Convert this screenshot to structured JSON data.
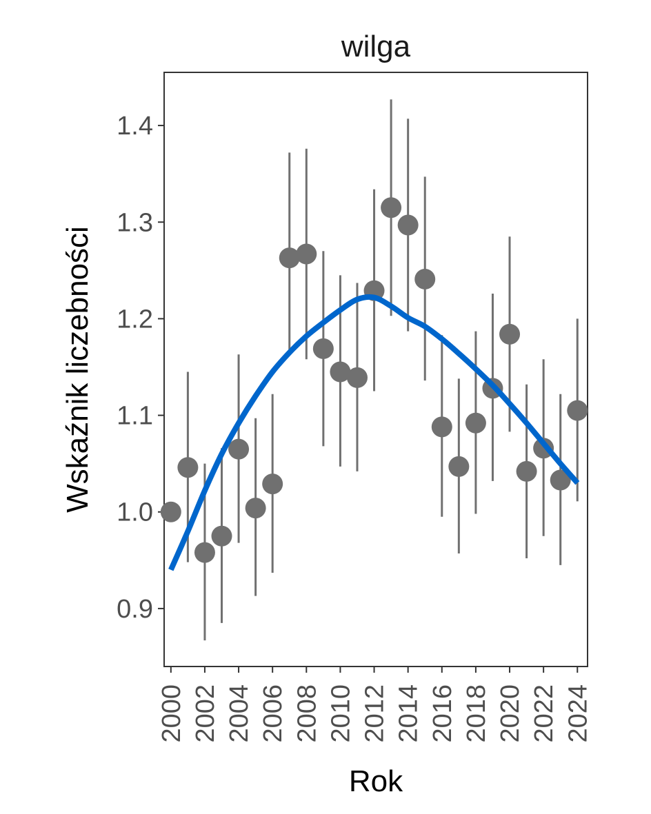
{
  "chart_data": {
    "type": "scatter",
    "title": "wilga",
    "xlabel": "Rok",
    "ylabel": "Wskaźnik liczebności",
    "xlim": [
      1999.6,
      2024.6
    ],
    "ylim": [
      0.84,
      1.455
    ],
    "x_ticks": [
      "2000",
      "2002",
      "2004",
      "2006",
      "2008",
      "2010",
      "2012",
      "2014",
      "2016",
      "2018",
      "2020",
      "2022",
      "2024"
    ],
    "y_ticks": [
      "0.9",
      "1.0",
      "1.1",
      "1.2",
      "1.3",
      "1.4"
    ],
    "grid": false,
    "legend": "none",
    "series": [
      {
        "type": "point_errorbar",
        "x": [
          2000,
          2001,
          2002,
          2003,
          2004,
          2005,
          2006,
          2007,
          2008,
          2009,
          2010,
          2011,
          2012,
          2013,
          2014,
          2015,
          2016,
          2017,
          2018,
          2019,
          2020,
          2021,
          2022,
          2023,
          2024
        ],
        "y": [
          1.0,
          1.046,
          0.958,
          0.975,
          1.065,
          1.004,
          1.029,
          1.263,
          1.267,
          1.169,
          1.145,
          1.139,
          1.229,
          1.315,
          1.297,
          1.241,
          1.088,
          1.047,
          1.092,
          1.128,
          1.184,
          1.042,
          1.066,
          1.033,
          1.105
        ],
        "lower": [
          1.0,
          0.948,
          0.867,
          0.885,
          0.968,
          0.913,
          0.937,
          1.165,
          1.158,
          1.068,
          1.047,
          1.042,
          1.125,
          1.203,
          1.187,
          1.136,
          0.995,
          0.957,
          0.998,
          1.032,
          1.083,
          0.952,
          0.975,
          0.945,
          1.011
        ],
        "upper": [
          1.0,
          1.145,
          1.05,
          1.066,
          1.163,
          1.097,
          1.122,
          1.372,
          1.376,
          1.27,
          1.245,
          1.237,
          1.334,
          1.427,
          1.407,
          1.347,
          1.183,
          1.138,
          1.187,
          1.226,
          1.285,
          1.132,
          1.158,
          1.122,
          1.2
        ],
        "color": "#707070"
      },
      {
        "type": "smooth_line",
        "x": [
          2000,
          2001,
          2002,
          2003,
          2004,
          2005,
          2006,
          2007,
          2008,
          2009,
          2010,
          2011,
          2012,
          2013,
          2014,
          2015,
          2016,
          2017,
          2018,
          2019,
          2020,
          2021,
          2022,
          2023,
          2024
        ],
        "y": [
          0.94,
          0.98,
          1.022,
          1.06,
          1.092,
          1.12,
          1.145,
          1.165,
          1.182,
          1.196,
          1.209,
          1.22,
          1.222,
          1.213,
          1.201,
          1.192,
          1.179,
          1.164,
          1.148,
          1.131,
          1.112,
          1.092,
          1.071,
          1.05,
          1.03
        ],
        "color": "#0066CC"
      }
    ]
  }
}
